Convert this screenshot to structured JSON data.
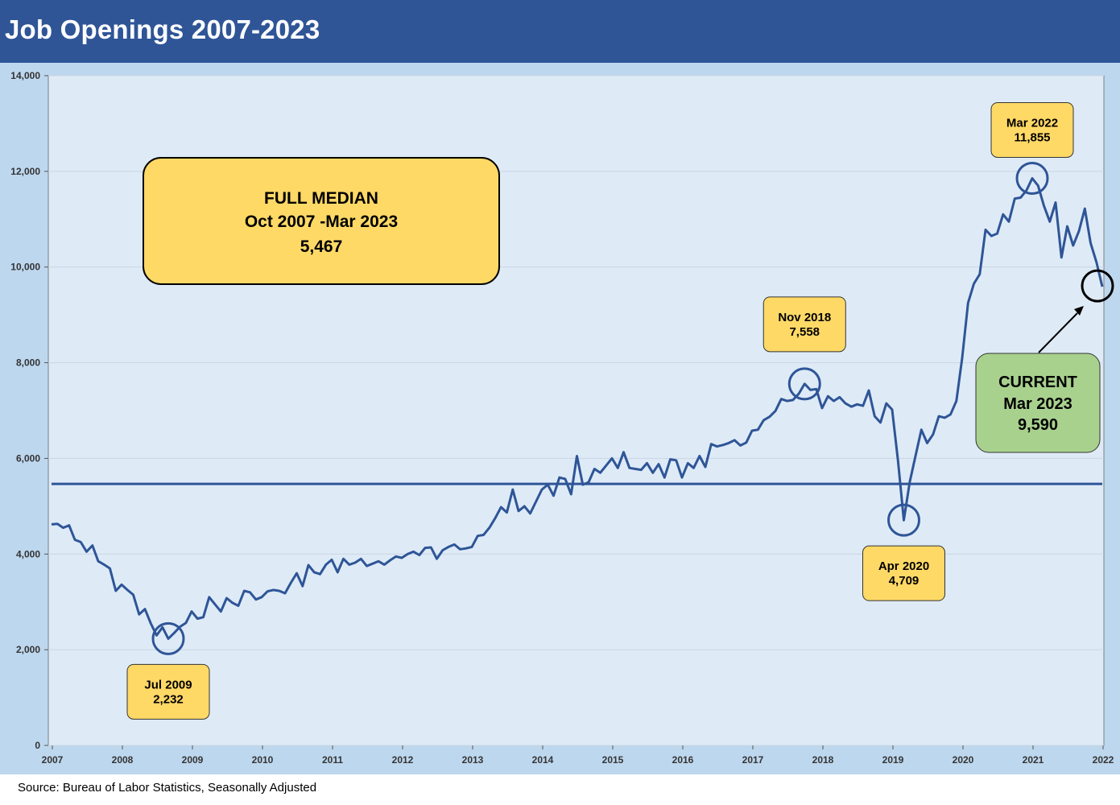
{
  "header": {
    "title": "Job Openings 2007-2023"
  },
  "footer": {
    "source": "Source: Bureau of Labor Statistics, Seasonally Adjusted"
  },
  "colors": {
    "header": "#2f5597",
    "outer_bg": "#bdd7ee",
    "plot_bg": "#deebf7",
    "line": "#2f5597",
    "callout": "#ffd966",
    "current": "#a9d18e"
  },
  "chart_data": {
    "type": "line",
    "ylim": [
      0,
      14000
    ],
    "yticks": [
      "0",
      "2,000",
      "4,000",
      "6,000",
      "8,000",
      "10,000",
      "12,000",
      "14,000"
    ],
    "ytick_values": [
      0,
      2000,
      4000,
      6000,
      8000,
      10000,
      12000,
      14000
    ],
    "xticks": [
      "2007",
      "2008",
      "2009",
      "2010",
      "2011",
      "2012",
      "2013",
      "2014",
      "2015",
      "2016",
      "2017",
      "2018",
      "2019",
      "2020",
      "2021",
      "2022"
    ],
    "grid": true,
    "median_value": 5467,
    "series": [
      {
        "values": [
          4620,
          4630,
          4550,
          4600,
          4300,
          4250,
          4050,
          4180,
          3850,
          3780,
          3700,
          3230,
          3360,
          3250,
          3150,
          2740,
          2850,
          2550,
          2300,
          2470,
          2232,
          2350,
          2480,
          2560,
          2800,
          2650,
          2680,
          3100,
          2950,
          2800,
          3080,
          2980,
          2920,
          3230,
          3200,
          3050,
          3100,
          3220,
          3250,
          3230,
          3180,
          3400,
          3600,
          3330,
          3770,
          3620,
          3580,
          3780,
          3880,
          3620,
          3900,
          3780,
          3820,
          3900,
          3750,
          3800,
          3850,
          3780,
          3870,
          3950,
          3920,
          4000,
          4050,
          3980,
          4130,
          4140,
          3900,
          4080,
          4150,
          4200,
          4100,
          4120,
          4150,
          4380,
          4400,
          4550,
          4750,
          4980,
          4870,
          5350,
          4900,
          5000,
          4850,
          5100,
          5350,
          5450,
          5220,
          5600,
          5570,
          5250,
          6050,
          5450,
          5500,
          5780,
          5700,
          5850,
          6000,
          5800,
          6130,
          5800,
          5780,
          5760,
          5900,
          5700,
          5880,
          5600,
          5980,
          5960,
          5600,
          5900,
          5800,
          6050,
          5820,
          6300,
          6250,
          6280,
          6320,
          6380,
          6270,
          6330,
          6580,
          6600,
          6800,
          6870,
          6990,
          7240,
          7200,
          7220,
          7350,
          7558,
          7430,
          7450,
          7050,
          7300,
          7200,
          7280,
          7150,
          7080,
          7130,
          7100,
          7420,
          6880,
          6750,
          7150,
          7020,
          5950,
          4709,
          5500,
          6050,
          6600,
          6320,
          6500,
          6880,
          6850,
          6920,
          7200,
          8100,
          9250,
          9650,
          9850,
          10780,
          10650,
          10700,
          11100,
          10950,
          11430,
          11450,
          11600,
          11855,
          11700,
          11280,
          10950,
          11350,
          10200,
          10850,
          10450,
          10750,
          11220,
          10500,
          10100,
          9590
        ]
      }
    ],
    "annotations": [
      {
        "label": "Jul 2009",
        "value": "2,232",
        "index": 20
      },
      {
        "label": "Nov 2018",
        "value": "7,558",
        "index": 129
      },
      {
        "label": "Apr 2020",
        "value": "4,709",
        "index": 146
      },
      {
        "label": "Mar 2022",
        "value": "11,855",
        "index": 168
      }
    ],
    "median_box": {
      "line1": "FULL MEDIAN",
      "line2": "Oct 2007 -Mar 2023",
      "line3": "5,467"
    },
    "current_box": {
      "line1": "CURRENT",
      "line2": "Mar 2023",
      "line3": "9,590"
    }
  }
}
